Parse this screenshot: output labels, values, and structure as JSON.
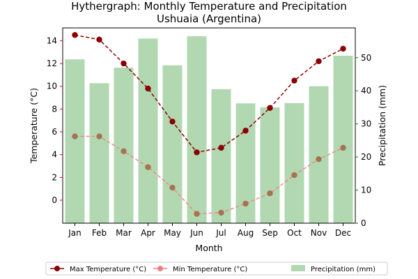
{
  "chart_data": {
    "type": "bar+line",
    "title": "Hythergraph: Monthly Temperature and Precipitation",
    "subtitle": "Ushuaia (Argentina)",
    "xlabel": "Month",
    "ylabel_left": "Temperature (°C)",
    "ylabel_right": "Precipitation (mm)",
    "categories": [
      "Jan",
      "Feb",
      "Mar",
      "Apr",
      "May",
      "Jun",
      "Jul",
      "Aug",
      "Sep",
      "Oct",
      "Nov",
      "Dec"
    ],
    "y_left": {
      "ticks": [
        0,
        2,
        4,
        6,
        8,
        10,
        12,
        14
      ],
      "color": "#ff0000"
    },
    "y_right": {
      "ticks": [
        0,
        10,
        20,
        30,
        40,
        50
      ],
      "color": "#008000"
    },
    "series": [
      {
        "name": "Max Temperature (°C)",
        "type": "line",
        "axis": "left",
        "color": "#8b0000",
        "values": [
          14.5,
          14.1,
          12.0,
          9.8,
          6.9,
          4.2,
          4.6,
          6.1,
          8.1,
          10.5,
          12.2,
          13.3
        ]
      },
      {
        "name": "Min Temperature (°C)",
        "type": "line",
        "axis": "left",
        "color": "#f08080",
        "values": [
          5.6,
          5.6,
          4.3,
          2.9,
          1.1,
          -1.2,
          -1.1,
          -0.3,
          0.6,
          2.2,
          3.6,
          4.6
        ]
      },
      {
        "name": "Precipitation (mm)",
        "type": "bar",
        "axis": "right",
        "color": "#b2d8b2",
        "values": [
          49.5,
          42.3,
          47.0,
          55.8,
          47.7,
          56.5,
          40.5,
          36.2,
          35.0,
          36.3,
          41.4,
          50.6
        ]
      }
    ]
  }
}
